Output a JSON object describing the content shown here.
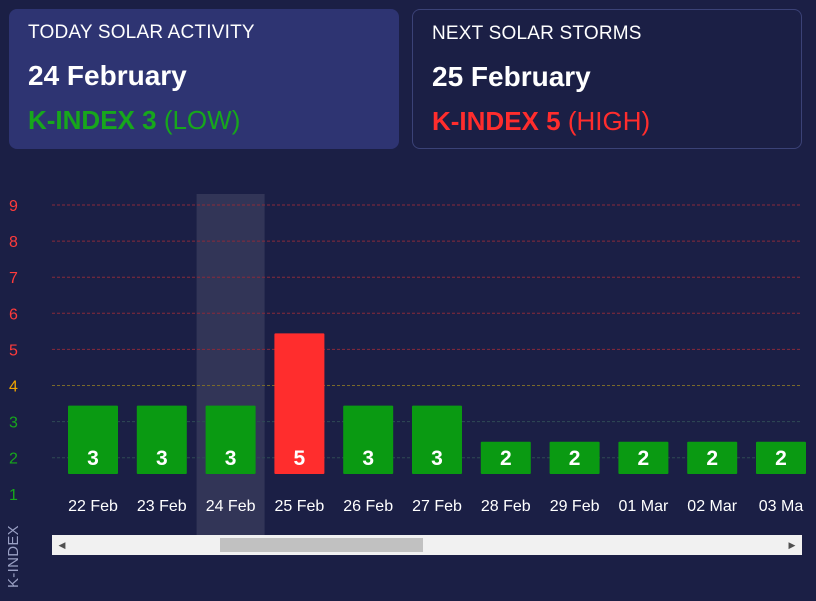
{
  "today": {
    "title": "TODAY SOLAR ACTIVITY",
    "date": "24 February",
    "kindex_label": "K-INDEX 3",
    "level": "(LOW)",
    "color": "#17a71c"
  },
  "next": {
    "title": "NEXT SOLAR STORMS",
    "date": "25 February",
    "kindex_label": "K-INDEX 5",
    "level": "(HIGH)",
    "color": "#ff2d2d"
  },
  "chart_data": {
    "type": "bar",
    "ylabel": "K-INDEX",
    "ylim": [
      1,
      9
    ],
    "yticks": [
      "1",
      "2",
      "3",
      "4",
      "5",
      "6",
      "7",
      "8",
      "9"
    ],
    "categories": [
      "22 Feb",
      "23 Feb",
      "24 Feb",
      "25 Feb",
      "26 Feb",
      "27 Feb",
      "28 Feb",
      "29 Feb",
      "01 Mar",
      "02 Mar",
      "03 Ma"
    ],
    "values": [
      3,
      3,
      3,
      5,
      3,
      3,
      2,
      2,
      2,
      2,
      2
    ],
    "highlighted_category": "24 Feb",
    "grid": true,
    "colors": {
      "low": "#0a9a12",
      "high": "#ff2d2d",
      "tick_low": "#17a71c",
      "tick_mid": "#f0a500",
      "tick_high": "#ff3b3b",
      "grid_red": "#8a2a3a",
      "grid_yellow": "#7a6a2a",
      "grid_green": "#2f4a55"
    }
  },
  "scrollbar": {
    "left_arrow": "◀",
    "right_arrow": "▶"
  }
}
